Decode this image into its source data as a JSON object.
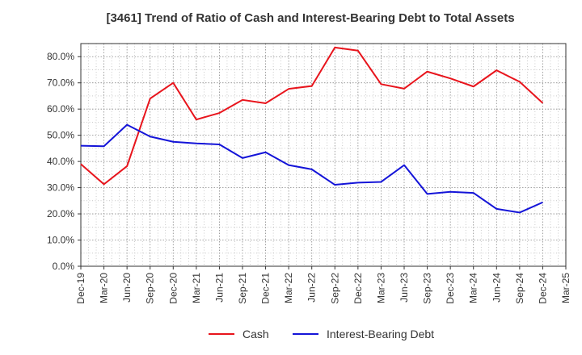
{
  "chart_data": {
    "type": "line",
    "title": "[3461]  Trend of Ratio of Cash and Interest-Bearing Debt to Total Assets",
    "xlabel": "",
    "ylabel": "",
    "categories": [
      "Dec-19",
      "Mar-20",
      "Jun-20",
      "Sep-20",
      "Dec-20",
      "Mar-21",
      "Jun-21",
      "Sep-21",
      "Dec-21",
      "Mar-22",
      "Jun-22",
      "Sep-22",
      "Dec-22",
      "Mar-23",
      "Jun-23",
      "Sep-23",
      "Dec-23",
      "Mar-24",
      "Jun-24",
      "Sep-24",
      "Dec-24",
      "Mar-25"
    ],
    "ylim": [
      0,
      85
    ],
    "yticks": [
      0,
      10,
      20,
      30,
      40,
      50,
      60,
      70,
      80
    ],
    "ytick_labels": [
      "0.0%",
      "10.0%",
      "20.0%",
      "30.0%",
      "40.0%",
      "50.0%",
      "60.0%",
      "70.0%",
      "80.0%"
    ],
    "grid": true,
    "legend": "bottom",
    "series": [
      {
        "name": "Cash",
        "color": "#e8141c",
        "values": [
          39.0,
          31.3,
          38.2,
          64.0,
          70.0,
          56.0,
          58.5,
          63.5,
          62.2,
          67.7,
          68.8,
          83.5,
          82.3,
          69.5,
          67.8,
          74.3,
          71.7,
          68.6,
          74.8,
          70.4,
          62.3,
          null
        ]
      },
      {
        "name": "Interest-Bearing Debt",
        "color": "#1414d8",
        "values": [
          46.0,
          45.8,
          54.0,
          49.5,
          47.5,
          46.9,
          46.5,
          41.3,
          43.5,
          38.6,
          37.0,
          31.1,
          31.9,
          32.2,
          38.6,
          27.6,
          28.4,
          28.0,
          21.9,
          20.5,
          24.4,
          null
        ]
      }
    ]
  }
}
